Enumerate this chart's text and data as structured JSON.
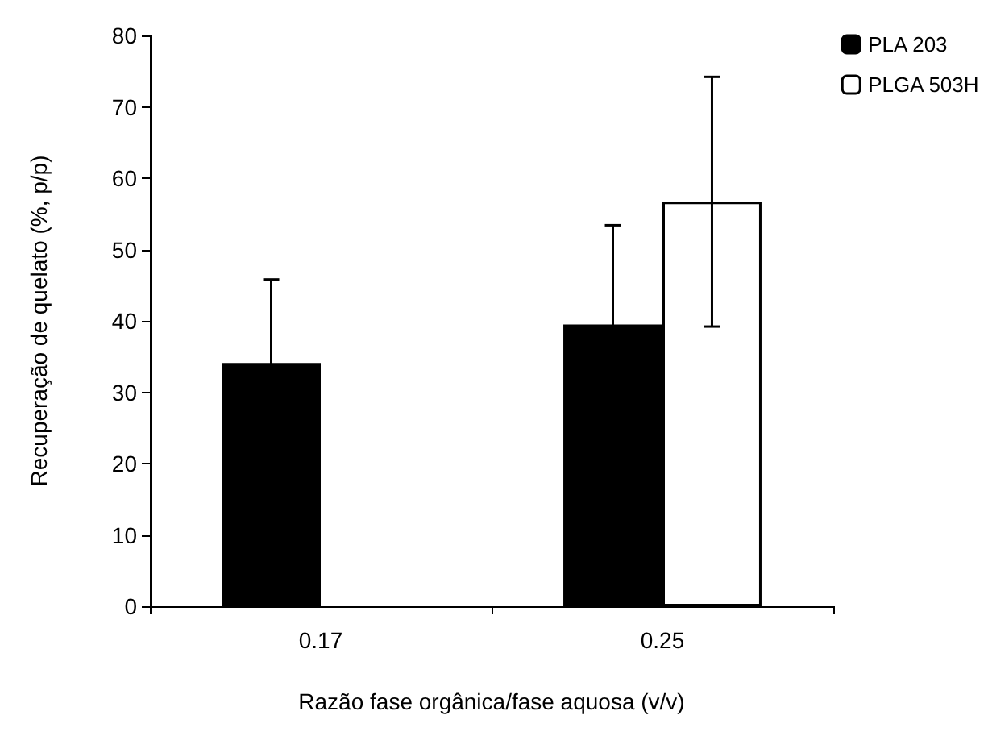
{
  "chart_data": {
    "type": "bar",
    "xlabel": "Razão fase orgânica/fase aquosa (v/v)",
    "ylabel": "Recuperação de quelato (%, p/p)",
    "categories": [
      "0.17",
      "0.25"
    ],
    "series": [
      {
        "name": "PLA 203",
        "color": "#000000",
        "values": [
          34.1,
          39.5
        ],
        "errors": [
          11.7,
          13.9
        ]
      },
      {
        "name": "PLGA 503H",
        "color": "#ffffff",
        "values": [
          null,
          56.7
        ],
        "errors": [
          null,
          17.5
        ]
      }
    ],
    "ylim": [
      0,
      80
    ],
    "yticks": [
      0,
      10,
      20,
      30,
      40,
      50,
      60,
      70,
      80
    ],
    "grid": false,
    "legend": "top right"
  }
}
